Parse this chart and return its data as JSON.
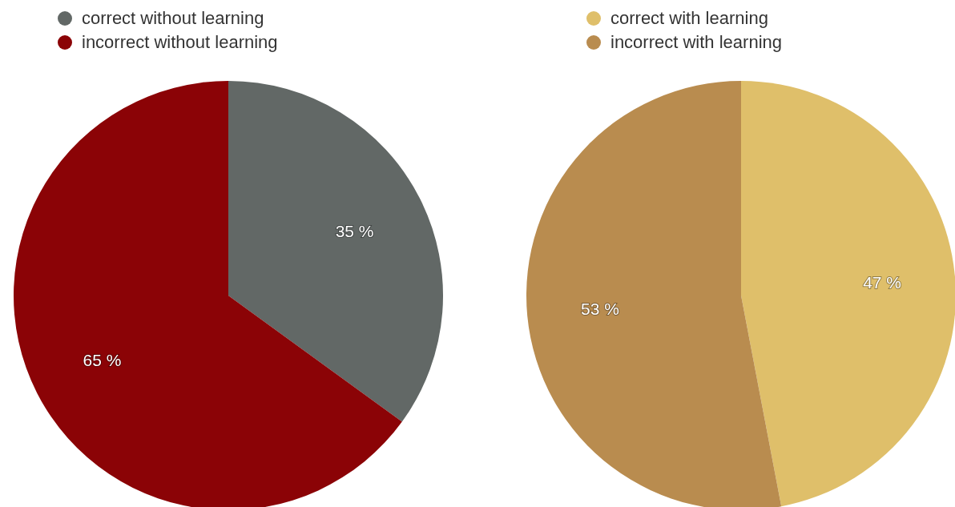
{
  "chart_data": [
    {
      "type": "pie",
      "categories": [
        "correct without learning",
        "incorrect without learning"
      ],
      "values": [
        35,
        65
      ],
      "colors": [
        "#626866",
        "#8b0306"
      ],
      "value_labels": [
        "35 %",
        "65 %"
      ],
      "legend": "top left"
    },
    {
      "type": "pie",
      "categories": [
        "correct with learning",
        "incorrect with learning"
      ],
      "values": [
        47,
        53
      ],
      "colors": [
        "#dfbf6a",
        "#b98c4f"
      ],
      "value_labels": [
        "47 %",
        "53 %"
      ],
      "legend": "top left"
    }
  ]
}
